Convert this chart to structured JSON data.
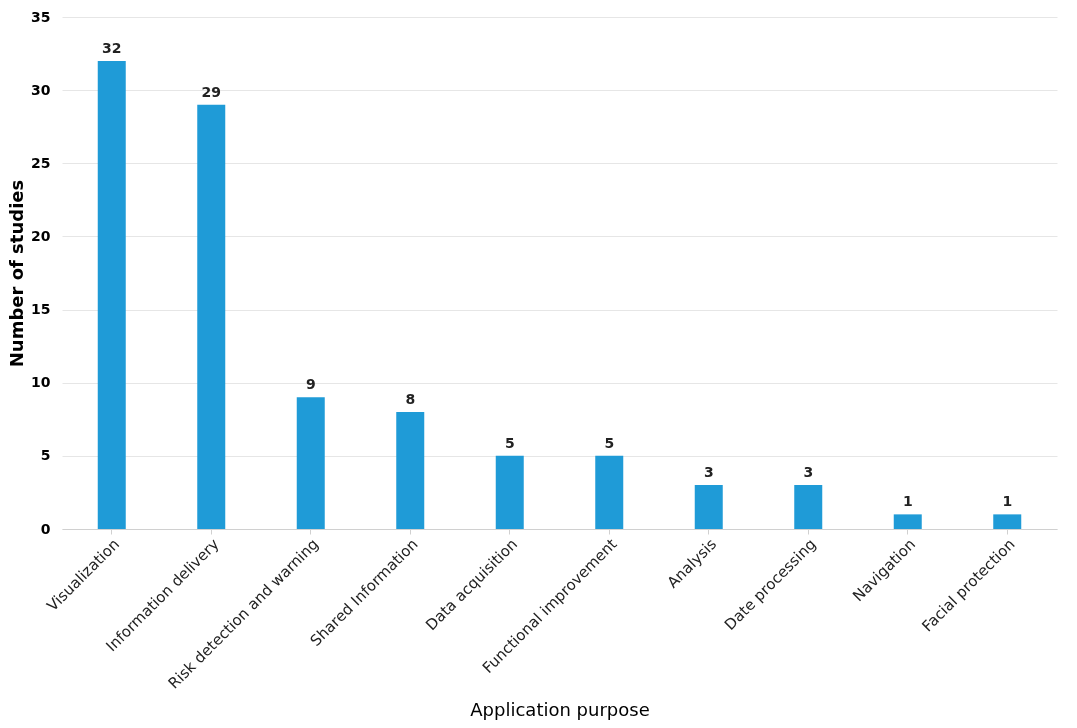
{
  "chart_data": {
    "type": "bar",
    "xlabel": "Application purpose",
    "ylabel": "Number of studies",
    "categories": [
      "Visualization",
      "Information delivery",
      "Risk detection and warning",
      "Shared Information",
      "Data acquisition",
      "Functional improvement",
      "Analysis",
      "Date processing",
      "Navigation",
      "Facial protection"
    ],
    "values": [
      32,
      29,
      9,
      8,
      5,
      5,
      3,
      3,
      1,
      1
    ],
    "color": "#1f9bd7",
    "ylim": [
      0,
      35
    ],
    "yticks": [
      0,
      5,
      10,
      15,
      20,
      25,
      30,
      35
    ],
    "grid": "y",
    "data_labels": true
  }
}
